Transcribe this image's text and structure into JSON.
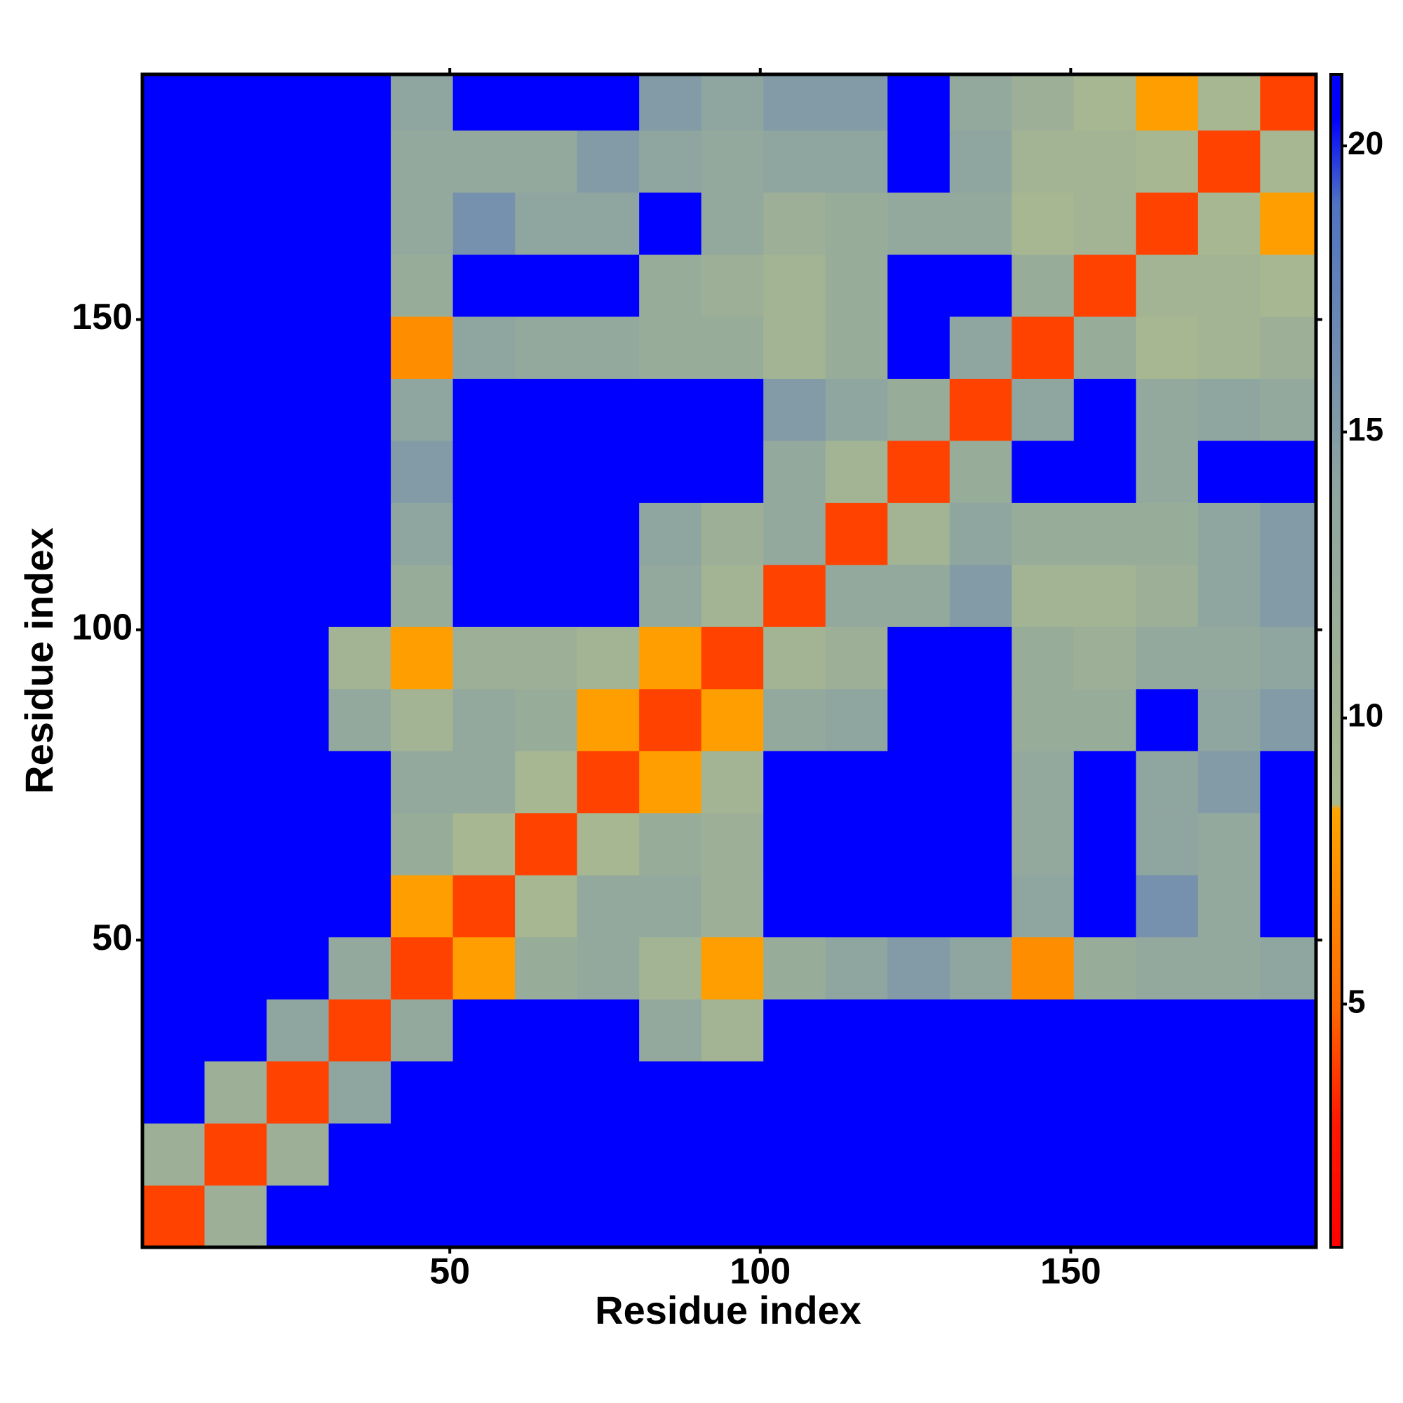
{
  "chart_data": {
    "type": "heatmap",
    "xlabel": "Residue index",
    "ylabel": "Residue index",
    "xbins": [
      0.5,
      10.5,
      20.5,
      30.5,
      40.5,
      50.5,
      60.5,
      70.5,
      80.5,
      90.5,
      100.5,
      110.5,
      120.5,
      130.5,
      140.5,
      150.5,
      160.5,
      170.5,
      180.5,
      189.5
    ],
    "ybins": [
      0.5,
      10.5,
      20.5,
      30.5,
      40.5,
      50.5,
      60.5,
      70.5,
      80.5,
      90.5,
      100.5,
      110.5,
      120.5,
      130.5,
      140.5,
      150.5,
      160.5,
      170.5,
      180.5,
      189.5
    ],
    "xlim": [
      0.5,
      189.5
    ],
    "ylim": [
      0.5,
      189.5
    ],
    "xticks": [
      50,
      100,
      150
    ],
    "yticks": [
      50,
      100,
      150
    ],
    "colorbar": {
      "lim": [
        0.75,
        21.25
      ],
      "ticks": [
        5,
        10,
        15,
        20
      ]
    },
    "colorscale": [
      [
        0.75,
        "#ff0000"
      ],
      [
        3,
        "#ff1a00"
      ],
      [
        5,
        "#ff6a00"
      ],
      [
        8.4,
        "#ffa500"
      ],
      [
        8.5,
        "#a9b98f"
      ],
      [
        14,
        "#8fa5a0"
      ],
      [
        19,
        "#4f73c0"
      ],
      [
        20.5,
        "#0000ff"
      ],
      [
        21.25,
        "#0000ff"
      ]
    ],
    "values": [
      [
        4,
        11,
        21,
        21,
        21,
        21,
        21,
        21,
        21,
        21,
        21,
        21,
        21,
        21,
        21,
        21,
        21,
        21,
        21
      ],
      [
        11,
        4,
        11,
        21,
        21,
        21,
        21,
        21,
        21,
        21,
        21,
        21,
        21,
        21,
        21,
        21,
        21,
        21,
        21
      ],
      [
        21,
        11,
        4,
        14,
        21,
        21,
        21,
        21,
        21,
        21,
        21,
        21,
        21,
        21,
        21,
        21,
        21,
        21,
        21
      ],
      [
        21,
        21,
        14,
        4,
        13,
        21,
        21,
        21,
        13,
        10,
        21,
        21,
        21,
        21,
        21,
        21,
        21,
        21,
        21
      ],
      [
        21,
        21,
        21,
        13,
        4,
        8,
        12,
        13,
        10,
        8,
        12,
        14,
        15,
        14,
        7,
        12,
        13,
        13,
        14
      ],
      [
        21,
        21,
        21,
        21,
        8,
        4,
        9,
        13,
        13,
        11,
        21,
        21,
        21,
        21,
        14,
        21,
        16,
        13,
        21
      ],
      [
        21,
        21,
        21,
        21,
        12,
        9,
        4,
        9,
        12,
        11,
        21,
        21,
        21,
        21,
        13,
        21,
        14,
        13,
        21
      ],
      [
        21,
        21,
        21,
        21,
        13,
        13,
        9,
        4,
        8,
        10,
        21,
        21,
        21,
        21,
        13,
        21,
        14,
        15,
        21
      ],
      [
        21,
        21,
        21,
        13,
        10,
        13,
        12,
        8,
        4,
        8,
        13,
        14,
        21,
        21,
        12,
        12,
        21,
        14,
        15
      ],
      [
        21,
        21,
        21,
        10,
        8,
        11,
        11,
        10,
        8,
        4,
        10,
        11,
        21,
        21,
        12,
        11,
        13,
        13,
        14
      ],
      [
        21,
        21,
        21,
        21,
        12,
        21,
        21,
        21,
        13,
        10,
        4,
        13,
        13,
        15,
        10,
        10,
        11,
        14,
        15
      ],
      [
        21,
        21,
        21,
        21,
        14,
        21,
        21,
        21,
        14,
        11,
        13,
        4,
        10,
        14,
        12,
        12,
        12,
        14,
        15
      ],
      [
        21,
        21,
        21,
        21,
        15,
        21,
        21,
        21,
        21,
        21,
        13,
        10,
        4,
        12,
        21,
        21,
        13,
        21,
        21
      ],
      [
        21,
        21,
        21,
        21,
        14,
        21,
        21,
        21,
        21,
        21,
        15,
        14,
        12,
        4,
        14,
        21,
        13,
        14,
        13
      ],
      [
        21,
        21,
        21,
        21,
        7,
        14,
        13,
        13,
        12,
        12,
        10,
        12,
        21,
        14,
        4,
        12,
        9,
        10,
        11
      ],
      [
        21,
        21,
        21,
        21,
        12,
        21,
        21,
        21,
        12,
        11,
        10,
        12,
        21,
        21,
        12,
        4,
        10,
        10,
        9
      ],
      [
        21,
        21,
        21,
        21,
        13,
        16,
        14,
        14,
        21,
        13,
        11,
        12,
        13,
        13,
        9,
        10,
        4,
        9,
        8
      ],
      [
        21,
        21,
        21,
        21,
        13,
        13,
        13,
        15,
        14,
        13,
        14,
        14,
        21,
        14,
        10,
        10,
        9,
        4,
        9
      ],
      [
        21,
        21,
        21,
        21,
        14,
        21,
        21,
        21,
        15,
        14,
        15,
        15,
        21,
        13,
        11,
        9,
        8,
        9,
        4
      ]
    ]
  }
}
